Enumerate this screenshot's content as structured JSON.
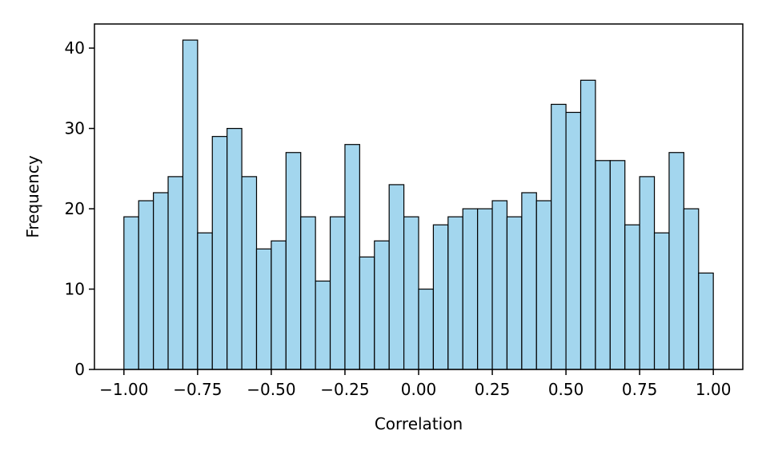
{
  "chart_data": {
    "type": "bar",
    "title": "",
    "xlabel": "Correlation",
    "ylabel": "Frequency",
    "xlim": [
      -1.1,
      1.1
    ],
    "ylim": [
      0,
      43
    ],
    "bin_start": -1.0,
    "bin_width": 0.05,
    "values": [
      19,
      21,
      22,
      24,
      41,
      17,
      29,
      30,
      24,
      15,
      16,
      27,
      19,
      11,
      19,
      28,
      14,
      16,
      23,
      19,
      10,
      18,
      19,
      20,
      20,
      21,
      19,
      22,
      21,
      33,
      32,
      36,
      26,
      26,
      18,
      24,
      17,
      27,
      20,
      12
    ],
    "x_ticks": [
      -1.0,
      -0.75,
      -0.5,
      -0.25,
      0.0,
      0.25,
      0.5,
      0.75,
      1.0
    ],
    "x_tick_labels": [
      "−1.00",
      "−0.75",
      "−0.50",
      "−0.25",
      "0.00",
      "0.25",
      "0.50",
      "0.75",
      "1.00"
    ],
    "y_ticks": [
      0,
      10,
      20,
      30,
      40
    ],
    "y_tick_labels": [
      "0",
      "10",
      "20",
      "30",
      "40"
    ],
    "grid": false,
    "legend": "none",
    "colors": {
      "bar_fill": "#a3d6ee",
      "bar_edge": "#000000",
      "axis": "#000000"
    }
  }
}
